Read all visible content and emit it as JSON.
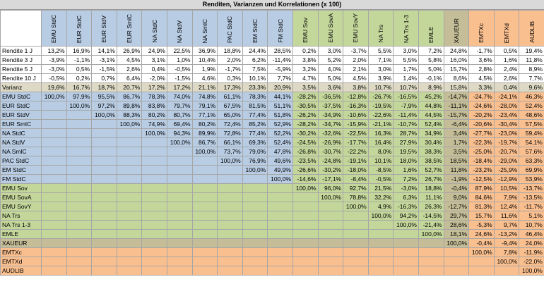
{
  "title": "Renditen, Varianzen und Korrelationen  (x 100)",
  "columns": [
    "EMU StdC",
    "EUR StdC",
    "EUR StdV",
    "EUR SmlC",
    "NA StdC",
    "NA StdV",
    "NA SmlC",
    "PAC StdC",
    "EM StdC",
    "FM StdC",
    "EMU Sov",
    "EMU SovA",
    "EMU SovY",
    "NA Trs",
    "NA Trs 1-3",
    "EMLE",
    "XAUEUR",
    "EMTXc",
    "EMTXd",
    "AUDLIB"
  ],
  "returns": [
    {
      "label": "Rendite 1 J",
      "values": [
        "13,2%",
        "16,9%",
        "14,1%",
        "26,9%",
        "24,9%",
        "22,5%",
        "36,9%",
        "18,8%",
        "24,4%",
        "28,5%",
        "0,2%",
        "3,0%",
        "-3,7%",
        "5,5%",
        "3,0%",
        "7,2%",
        "24,8%",
        "-1,7%",
        "0,5%",
        "19,4%"
      ]
    },
    {
      "label": "Rendite 3 J",
      "values": [
        "-3,9%",
        "-1,1%",
        "-3,1%",
        "4,5%",
        "3,1%",
        "1,0%",
        "10,4%",
        "2,0%",
        "6,2%",
        "-11,4%",
        "3,8%",
        "5,2%",
        "2,0%",
        "7,1%",
        "5,5%",
        "5,8%",
        "16,0%",
        "3,6%",
        "1,6%",
        "11,8%"
      ]
    },
    {
      "label": "Rendite 5 J",
      "values": [
        "-3,0%",
        "0,5%",
        "-1,5%",
        "2,6%",
        "0,4%",
        "-0,5%",
        "1,9%",
        "-1,7%",
        "7,5%",
        "-5,9%",
        "3,2%",
        "4,0%",
        "2,1%",
        "3,0%",
        "1,7%",
        "5,0%",
        "15,7%",
        "2,8%",
        "2,4%",
        "8,9%"
      ]
    },
    {
      "label": "Rendite 10 J",
      "values": [
        "-0,5%",
        "0,2%",
        "0,7%",
        "6,4%",
        "-2,0%",
        "-1,5%",
        "4,6%",
        "0,3%",
        "10,1%",
        "7,7%",
        "4,7%",
        "5,0%",
        "4,5%",
        "3,9%",
        "1,4%",
        "-0,1%",
        "8,6%",
        "4,5%",
        "2,6%",
        "7,7%"
      ]
    }
  ],
  "variance": {
    "label": "Varianz",
    "values": [
      "19,6%",
      "16,7%",
      "18,7%",
      "20,7%",
      "17,2%",
      "17,2%",
      "21,1%",
      "17,3%",
      "23,3%",
      "20,9%",
      "3,5%",
      "3,6%",
      "3,8%",
      "10,7%",
      "10,7%",
      "8,9%",
      "15,8%",
      "3,3%",
      "0,4%",
      "9,6%"
    ]
  },
  "correlations": [
    {
      "label": "EMU StdC",
      "values": [
        "100,0%",
        "97,9%",
        "95,5%",
        "86,7%",
        "78,3%",
        "74,0%",
        "74,8%",
        "61,1%",
        "78,3%",
        "44,1%",
        "-28,2%",
        "-36,5%",
        "-12,8%",
        "-26,7%",
        "-16,5%",
        "45,2%",
        "-14,7%",
        "-24,7%",
        "-24,1%",
        "46,3%"
      ]
    },
    {
      "label": "EUR StdC",
      "values": [
        "100,0%",
        "97,2%",
        "89,8%",
        "83,8%",
        "79,7%",
        "79,1%",
        "67,5%",
        "81,5%",
        "51,1%",
        "-30,5%",
        "-37,5%",
        "-16,3%",
        "-19,5%",
        "-7,9%",
        "44,8%",
        "-11,1%",
        "-24,6%",
        "-28,0%",
        "52,4%"
      ]
    },
    {
      "label": "EUR StdV",
      "values": [
        "100,0%",
        "88,3%",
        "80,2%",
        "80,7%",
        "77,1%",
        "65,0%",
        "77,4%",
        "51,8%",
        "-26,2%",
        "-34,9%",
        "-10,6%",
        "-22,6%",
        "-11,4%",
        "44,5%",
        "-15,7%",
        "-20,2%",
        "-23,4%",
        "48,6%"
      ]
    },
    {
      "label": "EUR SmlC",
      "values": [
        "100,0%",
        "74,9%",
        "69,4%",
        "80,2%",
        "72,4%",
        "85,2%",
        "52,9%",
        "-28,2%",
        "-34,7%",
        "-15,9%",
        "-21,1%",
        "-10,7%",
        "52,4%",
        "-6,4%",
        "-20,6%",
        "-30,4%",
        "57,5%"
      ]
    },
    {
      "label": "NA StdC",
      "values": [
        "100,0%",
        "94,3%",
        "89,9%",
        "72,8%",
        "77,4%",
        "52,2%",
        "-30,2%",
        "-32,6%",
        "-22,5%",
        "16,3%",
        "28,7%",
        "34,9%",
        "3,4%",
        "-27,7%",
        "-23,0%",
        "59,4%"
      ]
    },
    {
      "label": "NA StdV",
      "values": [
        "100,0%",
        "86,7%",
        "66,1%",
        "69,3%",
        "52,4%",
        "-24,5%",
        "-26,9%",
        "-17,7%",
        "16,4%",
        "27,9%",
        "30,4%",
        "1,7%",
        "-22,3%",
        "-19,7%",
        "54,1%"
      ]
    },
    {
      "label": "NA SmlC",
      "values": [
        "100,0%",
        "73,7%",
        "79,0%",
        "47,8%",
        "-26,8%",
        "-30,7%",
        "-22,2%",
        "8,0%",
        "19,5%",
        "38,3%",
        "3,5%",
        "-25,0%",
        "-20,7%",
        "57,6%"
      ]
    },
    {
      "label": "PAC StdC",
      "values": [
        "100,0%",
        "76,9%",
        "49,6%",
        "-23,5%",
        "-24,8%",
        "-19,1%",
        "10,1%",
        "18,0%",
        "38,5%",
        "18,5%",
        "-18,4%",
        "-29,0%",
        "63,3%"
      ]
    },
    {
      "label": "EM StdC",
      "values": [
        "100,0%",
        "49,9%",
        "-26,6%",
        "-30,2%",
        "-18,0%",
        "-8,5%",
        "1,6%",
        "52,7%",
        "11,8%",
        "-23,2%",
        "-25,9%",
        "69,9%"
      ]
    },
    {
      "label": "FM StdC",
      "values": [
        "100,0%",
        "-14,6%",
        "-17,1%",
        "-8,4%",
        "-0,5%",
        "7,2%",
        "26,7%",
        "-1,9%",
        "-12,5%",
        "-12,9%",
        "53,9%"
      ]
    },
    {
      "label": "EMU Sov",
      "values": [
        "100,0%",
        "96,0%",
        "92,7%",
        "21,5%",
        "-3,0%",
        "18,8%",
        "-0,4%",
        "87,9%",
        "10,5%",
        "-13,7%"
      ]
    },
    {
      "label": "EMU SovA",
      "values": [
        "100,0%",
        "78,8%",
        "32,2%",
        "6,3%",
        "11,1%",
        "9,0%",
        "84,6%",
        "7,9%",
        "-13,5%"
      ]
    },
    {
      "label": "EMU SovY",
      "values": [
        "100,0%",
        "4,9%",
        "-16,3%",
        "26,3%",
        "-12,7%",
        "81,3%",
        "12,4%",
        "-11,7%"
      ]
    },
    {
      "label": "NA Trs",
      "values": [
        "100,0%",
        "94,2%",
        "-14,5%",
        "29,7%",
        "15,7%",
        "11,6%",
        "5,1%"
      ]
    },
    {
      "label": "NA Trs 1-3",
      "values": [
        "100,0%",
        "-21,4%",
        "28,6%",
        "-5,3%",
        "9,7%",
        "10,7%"
      ]
    },
    {
      "label": "EMLE",
      "values": [
        "100,0%",
        "18,1%",
        "24,6%",
        "-13,2%",
        "46,4%"
      ]
    },
    {
      "label": "XAUEUR",
      "values": [
        "100,0%",
        "-0,4%",
        "-9,4%",
        "24,0%"
      ]
    },
    {
      "label": "EMTXc",
      "values": [
        "100,0%",
        "7,8%",
        "-11,9%"
      ]
    },
    {
      "label": "EMTXd",
      "values": [
        "100,0%",
        "-22,0%"
      ]
    },
    {
      "label": "AUDLIB",
      "values": [
        "100,0%"
      ]
    }
  ]
}
